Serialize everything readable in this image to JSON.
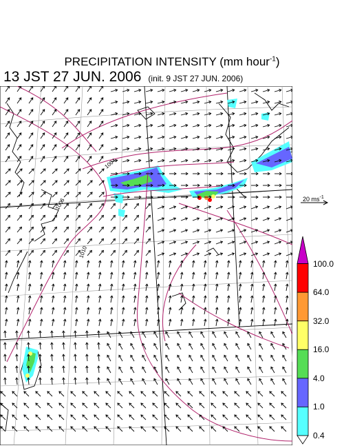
{
  "header": {
    "title_main": "PRECIPITATION INTENSITY (mm hour",
    "title_exp": "-1",
    "title_end": ")",
    "valid_time": "13 JST 27 JUN. 2006",
    "init_time": "(init. 9 JST 27 JUN. 2006)"
  },
  "reference_vector": {
    "value": "20 ms",
    "exp": "-1"
  },
  "colorbar": {
    "levels": [
      "100.0",
      "64.0",
      "32.0",
      "16.0",
      "4.0",
      "1.0",
      "0.4"
    ],
    "colors": [
      "#c800c8",
      "#ff0000",
      "#ff9933",
      "#ffff66",
      "#55dd55",
      "#6666ff",
      "#55ffff"
    ]
  },
  "map": {
    "isobar_labels": [
      "1004",
      "1006",
      "1010"
    ],
    "colors": {
      "isobar": "#b0206a",
      "coast": "#000000",
      "grid": "#888888"
    }
  }
}
